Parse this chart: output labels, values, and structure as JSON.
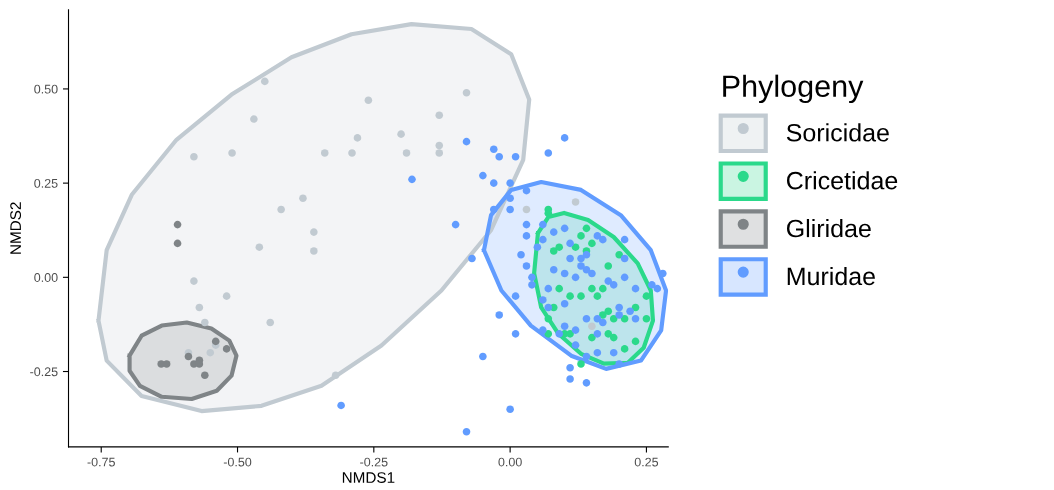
{
  "chart_data": {
    "type": "scatter",
    "xlabel": "NMDS1",
    "ylabel": "NMDS2",
    "legend_title": "Phylogeny",
    "legend": "right",
    "marker": "circle",
    "xlim": [
      -0.81,
      0.29
    ],
    "ylim": [
      -0.45,
      0.71
    ],
    "xticks": [
      -0.75,
      {
        "value": -0.5,
        "label": "-0.50"
      },
      -0.25,
      {
        "value": 0,
        "label": "0.00"
      },
      0.25
    ],
    "yticks": [
      -0.25,
      {
        "value": 0,
        "label": "0.00"
      },
      0.25,
      {
        "value": 0.5,
        "label": "0.50"
      }
    ],
    "series": [
      {
        "name": "Soricidae",
        "color": "#c1cad1",
        "x": [
          -0.45,
          -0.58,
          -0.51,
          -0.47,
          -0.34,
          -0.29,
          -0.28,
          -0.26,
          -0.2,
          -0.19,
          -0.13,
          -0.13,
          -0.13,
          -0.08,
          -0.38,
          -0.36,
          -0.36,
          -0.46,
          -0.42,
          -0.58,
          -0.57,
          -0.52,
          -0.56,
          -0.54,
          -0.55,
          -0.44,
          -0.32,
          0.03,
          0.12,
          0.15,
          -0.59
        ],
        "values": [
          0.52,
          0.32,
          0.33,
          0.42,
          0.33,
          0.33,
          0.37,
          0.47,
          0.38,
          0.33,
          0.43,
          0.35,
          0.33,
          0.49,
          0.21,
          0.12,
          0.07,
          0.08,
          0.18,
          -0.01,
          -0.08,
          -0.05,
          -0.12,
          -0.18,
          -0.2,
          -0.12,
          -0.26,
          0.18,
          0.2,
          -0.13,
          -0.2
        ]
      },
      {
        "name": "Cricetidae",
        "color": "#2bd98b",
        "x": [
          0.07,
          0.07,
          0.14,
          0.13,
          0.15,
          0.08,
          0.09,
          0.12,
          0.14,
          0.2,
          0.18,
          0.17,
          0.15,
          0.16,
          0.13,
          0.11,
          0.09,
          0.08,
          0.07,
          0.18,
          0.17,
          0.19,
          0.21,
          0.23,
          0.25,
          0.25,
          0.07,
          0.1,
          0.11,
          0.15,
          0.18,
          0.19,
          0.23,
          0.13,
          0.21
        ],
        "values": [
          0.18,
          0.17,
          0.13,
          0.11,
          0.09,
          0.07,
          0.08,
          0.08,
          0.07,
          0.06,
          0.03,
          -0.03,
          -0.03,
          -0.05,
          -0.05,
          -0.05,
          -0.03,
          -0.08,
          -0.11,
          -0.09,
          -0.1,
          -0.11,
          -0.11,
          -0.08,
          -0.11,
          -0.05,
          -0.15,
          -0.15,
          -0.15,
          -0.16,
          -0.15,
          -0.16,
          -0.17,
          -0.23,
          -0.19
        ]
      },
      {
        "name": "Gliridae",
        "color": "#7f8487",
        "x": [
          -0.61,
          -0.61,
          -0.64,
          -0.63,
          -0.58,
          -0.57,
          -0.54,
          -0.52,
          -0.56,
          -0.59,
          -0.57
        ],
        "values": [
          0.14,
          0.09,
          -0.23,
          -0.23,
          -0.23,
          -0.22,
          -0.17,
          -0.19,
          -0.26,
          -0.21,
          -0.23
        ]
      },
      {
        "name": "Muridae",
        "color": "#619cff",
        "x": [
          -0.08,
          -0.03,
          -0.02,
          0.01,
          0.07,
          0.1,
          -0.05,
          -0.03,
          0.0,
          -0.18,
          -0.1,
          0.0,
          0.03,
          0.0,
          -0.03,
          -0.02,
          0.01,
          -0.05,
          -0.31,
          0.0,
          -0.08,
          0.11,
          0.14,
          0.11,
          -0.07,
          0.03,
          0.03,
          0.06,
          0.06,
          0.02,
          0.03,
          0.04,
          0.07,
          0.08,
          0.08,
          0.1,
          0.11,
          0.13,
          0.14,
          0.11,
          0.1,
          0.12,
          0.14,
          0.15,
          0.16,
          0.17,
          0.21,
          0.21,
          0.21,
          0.18,
          0.19,
          0.23,
          0.28,
          0.27,
          0.26,
          0.06,
          0.07,
          0.1,
          0.14,
          0.16,
          0.17,
          0.2,
          0.22,
          0.2,
          0.23,
          0.1,
          0.12,
          0.16,
          0.06,
          0.09,
          0.12,
          0.16,
          0.19,
          0.2,
          0.14,
          0.01,
          0.04,
          0.05,
          0.13
        ],
        "values": [
          0.36,
          0.34,
          0.32,
          0.32,
          0.33,
          0.37,
          0.27,
          0.25,
          0.25,
          0.26,
          0.14,
          0.21,
          0.23,
          0.18,
          0.18,
          -0.1,
          -0.15,
          -0.21,
          -0.34,
          -0.35,
          -0.41,
          -0.27,
          -0.28,
          -0.24,
          0.05,
          0.14,
          0.11,
          0.14,
          0.1,
          0.06,
          0.03,
          -0.02,
          -0.03,
          0.02,
          0.12,
          0.13,
          0.09,
          0.05,
          0.06,
          0.05,
          0.01,
          0.0,
          0.02,
          0.01,
          0.11,
          0.1,
          0.1,
          0.05,
          0.0,
          -0.01,
          -0.02,
          -0.03,
          0.01,
          -0.03,
          -0.02,
          -0.06,
          -0.08,
          -0.07,
          -0.11,
          -0.11,
          -0.12,
          -0.08,
          -0.09,
          -0.1,
          -0.11,
          -0.13,
          -0.14,
          -0.15,
          -0.14,
          -0.15,
          -0.18,
          -0.2,
          -0.2,
          -0.23,
          -0.21,
          -0.05,
          0.0,
          0.08,
          0.03
        ]
      },
      {
        "type": "area",
        "marker": "none",
        "color": "#c1cad1",
        "x": [
          -0.755,
          -0.74,
          -0.694,
          -0.612,
          -0.511,
          -0.401,
          -0.291,
          -0.181,
          -0.071,
          0.002,
          0.035,
          0.024,
          -0.035,
          -0.126,
          -0.236,
          -0.346,
          -0.456,
          -0.566,
          -0.676,
          -0.74,
          -0.755
        ],
        "values": [
          -0.115,
          0.072,
          0.219,
          0.365,
          0.485,
          0.584,
          0.645,
          0.672,
          0.659,
          0.592,
          0.472,
          0.312,
          0.125,
          -0.035,
          -0.181,
          -0.288,
          -0.341,
          -0.355,
          -0.315,
          -0.221,
          -0.115
        ]
      },
      {
        "type": "area",
        "marker": "none",
        "color": "#2bd98b",
        "x": [
          0.051,
          0.07,
          0.099,
          0.143,
          0.19,
          0.234,
          0.258,
          0.262,
          0.245,
          0.216,
          0.172,
          0.13,
          0.088,
          0.057,
          0.044,
          0.051
        ],
        "values": [
          0.117,
          0.16,
          0.171,
          0.152,
          0.107,
          0.037,
          -0.035,
          -0.115,
          -0.187,
          -0.227,
          -0.229,
          -0.203,
          -0.149,
          -0.08,
          0.011,
          0.117
        ]
      },
      {
        "type": "area",
        "marker": "none",
        "color": "#7f8487",
        "x": [
          -0.698,
          -0.676,
          -0.639,
          -0.593,
          -0.548,
          -0.515,
          -0.502,
          -0.511,
          -0.538,
          -0.584,
          -0.639,
          -0.679,
          -0.698,
          -0.698
        ],
        "values": [
          -0.208,
          -0.155,
          -0.128,
          -0.12,
          -0.136,
          -0.168,
          -0.208,
          -0.261,
          -0.301,
          -0.323,
          -0.317,
          -0.288,
          -0.248,
          -0.208
        ]
      },
      {
        "type": "area",
        "marker": "none",
        "color": "#619cff",
        "x": [
          -0.048,
          -0.035,
          0.002,
          0.057,
          0.13,
          0.203,
          0.258,
          0.286,
          0.277,
          0.24,
          0.176,
          0.112,
          0.038,
          -0.016,
          -0.048
        ],
        "values": [
          0.072,
          0.165,
          0.232,
          0.253,
          0.232,
          0.165,
          0.072,
          -0.035,
          -0.141,
          -0.221,
          -0.243,
          -0.208,
          -0.128,
          -0.035,
          0.072
        ]
      }
    ]
  }
}
